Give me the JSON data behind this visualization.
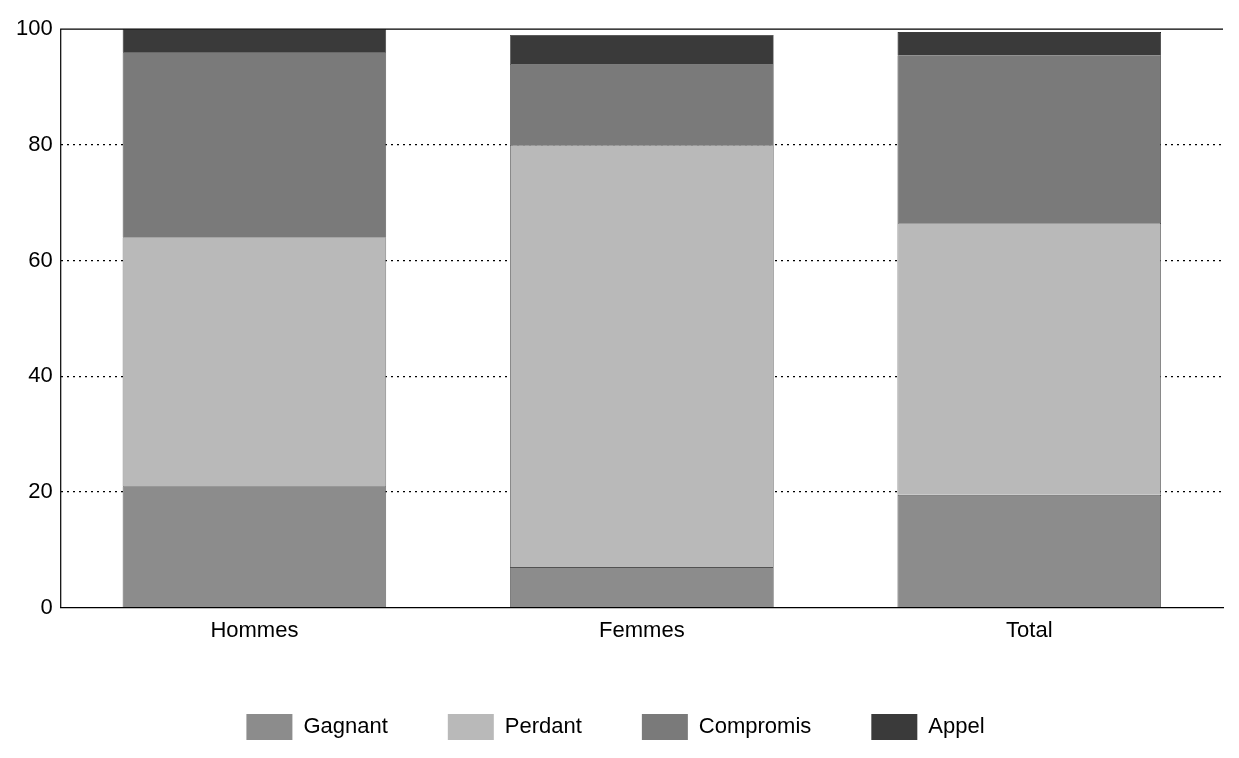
{
  "chart_data": {
    "type": "bar",
    "stacked": true,
    "categories": [
      "Hommes",
      "Femmes",
      "Total"
    ],
    "series": [
      {
        "name": "Gagnant",
        "color": "#8c8c8c",
        "values": [
          21,
          7,
          19.5
        ]
      },
      {
        "name": "Perdant",
        "color": "#b9b9b9",
        "values": [
          43,
          73,
          47
        ]
      },
      {
        "name": "Compromis",
        "color": "#7a7a7a",
        "values": [
          32,
          14,
          29
        ]
      },
      {
        "name": "Appel",
        "color": "#3a3a3a",
        "values": [
          4,
          5,
          4
        ]
      }
    ],
    "ylim": [
      0,
      100
    ],
    "yticks": [
      0,
      20,
      40,
      60,
      80,
      100
    ],
    "grid": "y",
    "legend": "bottom"
  }
}
